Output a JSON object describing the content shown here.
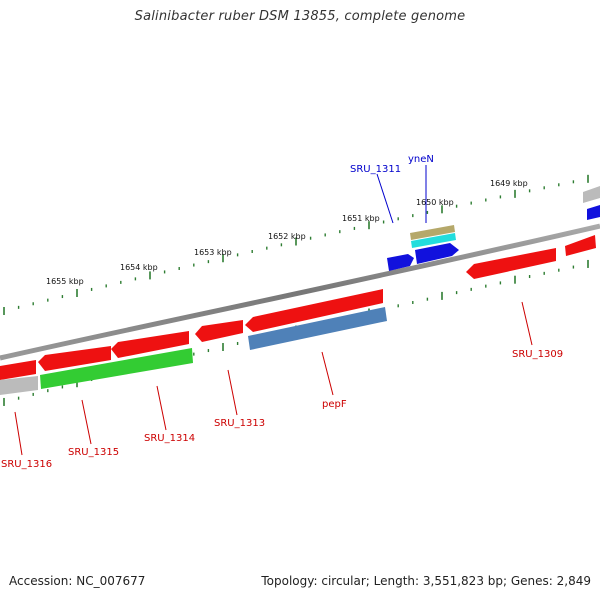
{
  "title": "Salinibacter ruber DSM 13855, complete genome",
  "footer": {
    "accession": "Accession: NC_007677",
    "summary": "Topology: circular; Length: 3,551,823 bp; Genes: 2,849"
  },
  "scale_labels": [
    "1655 kbp",
    "1654 kbp",
    "1653 kbp",
    "1652 kbp",
    "1651 kbp",
    "1650 kbp",
    "1649 kbp"
  ],
  "gene_labels": [
    {
      "name": "SRU_1311",
      "color": "#0000cc"
    },
    {
      "name": "yneN",
      "color": "#0000cc"
    },
    {
      "name": "SRU_1309",
      "color": "#cc0000"
    },
    {
      "name": "pepF",
      "color": "#cc0000"
    },
    {
      "name": "SRU_1313",
      "color": "#cc0000"
    },
    {
      "name": "SRU_1314",
      "color": "#cc0000"
    },
    {
      "name": "SRU_1315",
      "color": "#cc0000"
    },
    {
      "name": "SRU_1316",
      "color": "#cc0000"
    }
  ],
  "colors": {
    "backbone": "#808080",
    "tick": "#2e7d32",
    "cds": "#ee1111",
    "cds_green": "#33cc33",
    "cds_steel": "#4f81b8",
    "cds_blue": "#1111dd",
    "cds_gray": "#bbbbbb",
    "trna_tan": "#b5a86a",
    "trna_cyan": "#22dddd"
  }
}
